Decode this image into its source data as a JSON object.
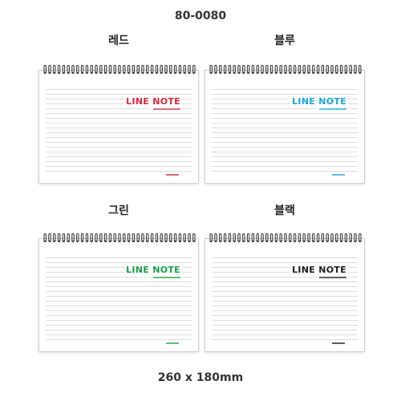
{
  "product_code": "80-0080",
  "dimensions": "260 x 180mm",
  "variants": [
    {
      "label": "레드",
      "color": "#d7263d"
    },
    {
      "label": "블루",
      "color": "#1ba3dc"
    },
    {
      "label": "그린",
      "color": "#1a9e46"
    },
    {
      "label": "블랙",
      "color": "#1a1a1a"
    }
  ],
  "notebook": {
    "title": "LINE NOTE"
  }
}
